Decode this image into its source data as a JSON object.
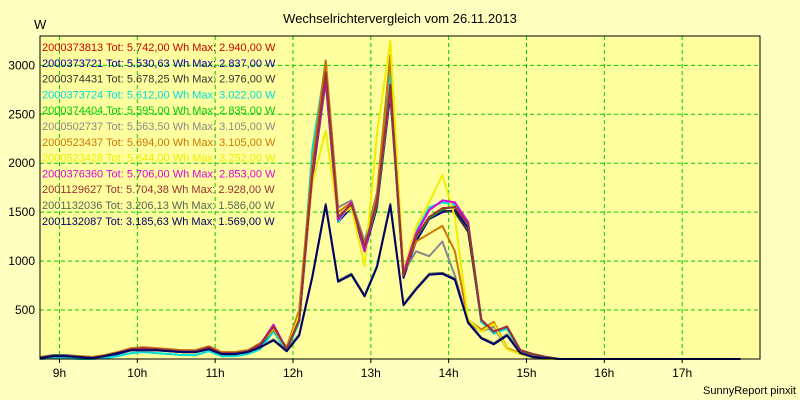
{
  "chart_data": {
    "type": "line",
    "title": "Wechselrichtervergleich vom 26.11.2013",
    "ylabel": "W",
    "credit": "SunnyReport pinxit",
    "ylim": [
      0,
      3300
    ],
    "y_ticks": [
      500,
      1000,
      1500,
      2000,
      2500,
      3000
    ],
    "xlim": [
      8.75,
      18.0
    ],
    "x_ticks": [
      {
        "value": 9,
        "label": "9h"
      },
      {
        "value": 10,
        "label": "10h"
      },
      {
        "value": 11,
        "label": "11h"
      },
      {
        "value": 12,
        "label": "12h"
      },
      {
        "value": 13,
        "label": "13h"
      },
      {
        "value": 14,
        "label": "14h"
      },
      {
        "value": 15,
        "label": "15h"
      },
      {
        "value": 16,
        "label": "16h"
      },
      {
        "value": 17,
        "label": "17h"
      }
    ],
    "grid": true,
    "legend_position": "top-left",
    "x": [
      8.75,
      8.92,
      9.08,
      9.25,
      9.42,
      9.58,
      9.75,
      9.92,
      10.08,
      10.25,
      10.42,
      10.58,
      10.75,
      10.92,
      11.08,
      11.25,
      11.42,
      11.58,
      11.75,
      11.92,
      12.08,
      12.25,
      12.42,
      12.58,
      12.75,
      12.92,
      13.08,
      13.25,
      13.42,
      13.58,
      13.75,
      13.92,
      14.08,
      14.25,
      14.42,
      14.58,
      14.75,
      14.92,
      15.08,
      15.25,
      15.42,
      15.58,
      15.75,
      15.92,
      16.08,
      16.25,
      16.42,
      16.58,
      16.75,
      16.92,
      17.08,
      17.25,
      17.42,
      17.58,
      17.75
    ],
    "series": [
      {
        "name": "2000373813 Tot: 5.742,00 Wh Max: 2.940,00 W",
        "color": "#cc0000",
        "values": [
          10,
          30,
          30,
          20,
          10,
          30,
          60,
          100,
          110,
          100,
          90,
          80,
          80,
          120,
          60,
          60,
          80,
          150,
          330,
          100,
          400,
          1900,
          2940,
          1450,
          1580,
          1150,
          1600,
          2800,
          850,
          1250,
          1450,
          1540,
          1550,
          1380,
          400,
          280,
          330,
          90,
          50,
          20,
          0,
          0,
          0,
          0,
          0,
          0,
          0,
          0,
          0,
          0,
          0,
          0,
          0,
          0,
          0
        ]
      },
      {
        "name": "2000373721 Tot: 5.530,63 Wh Max: 2.837,00 W",
        "color": "#000099",
        "values": [
          0,
          20,
          20,
          10,
          10,
          20,
          50,
          90,
          100,
          90,
          80,
          70,
          70,
          110,
          50,
          50,
          70,
          140,
          300,
          90,
          380,
          1850,
          2837,
          1400,
          1550,
          1100,
          1550,
          2700,
          830,
          1200,
          1430,
          1500,
          1520,
          1340,
          380,
          270,
          320,
          80,
          40,
          10,
          0,
          0,
          0,
          0,
          0,
          0,
          0,
          0,
          0,
          0,
          0,
          0,
          0,
          0,
          0
        ]
      },
      {
        "name": "2000374431 Tot: 5.678,25 Wh Max: 2.976,00 W",
        "color": "#333333",
        "values": [
          10,
          30,
          30,
          20,
          10,
          30,
          60,
          100,
          110,
          100,
          90,
          80,
          80,
          120,
          60,
          60,
          80,
          150,
          320,
          100,
          400,
          1900,
          2976,
          1440,
          1580,
          1150,
          1600,
          2780,
          860,
          1250,
          1450,
          1520,
          1500,
          1300,
          400,
          280,
          330,
          90,
          50,
          20,
          0,
          0,
          0,
          0,
          0,
          0,
          0,
          0,
          0,
          0,
          0,
          0,
          0,
          0,
          0
        ]
      },
      {
        "name": "2000373724 Tot: 5.612,00 Wh Max: 3.022,00 W",
        "color": "#00dddd",
        "values": [
          0,
          10,
          10,
          0,
          0,
          10,
          30,
          60,
          70,
          60,
          50,
          40,
          40,
          80,
          30,
          30,
          50,
          100,
          280,
          80,
          380,
          2150,
          3022,
          1400,
          1600,
          1100,
          1650,
          2950,
          900,
          1300,
          1550,
          1600,
          1580,
          1400,
          380,
          260,
          310,
          70,
          30,
          10,
          0,
          0,
          0,
          0,
          0,
          0,
          0,
          0,
          0,
          0,
          0,
          0,
          0,
          0,
          0
        ]
      },
      {
        "name": "2000374404 Tot: 5.595,00 Wh Max: 2.835,00 W",
        "color": "#00cc00",
        "values": [
          10,
          30,
          30,
          20,
          10,
          30,
          60,
          100,
          110,
          100,
          90,
          80,
          80,
          120,
          60,
          60,
          80,
          150,
          330,
          100,
          400,
          1900,
          2835,
          1430,
          1580,
          1120,
          1580,
          2750,
          860,
          1240,
          1440,
          1530,
          1560,
          1380,
          400,
          280,
          330,
          90,
          50,
          20,
          0,
          0,
          0,
          0,
          0,
          0,
          0,
          0,
          0,
          0,
          0,
          0,
          0,
          0,
          0
        ]
      },
      {
        "name": "2000502737 Tot: 5.563,50 Wh Max: 3.105,00 W",
        "color": "#888888",
        "values": [
          20,
          40,
          40,
          30,
          20,
          40,
          70,
          110,
          120,
          110,
          100,
          90,
          90,
          130,
          70,
          70,
          90,
          160,
          300,
          120,
          500,
          2000,
          3050,
          1550,
          1620,
          1200,
          1700,
          3105,
          880,
          1100,
          1050,
          1200,
          850,
          380,
          280,
          330,
          100,
          50,
          20,
          0,
          0,
          0,
          0,
          0,
          0,
          0,
          0,
          0,
          0,
          0,
          0,
          0,
          0,
          0,
          0
        ]
      },
      {
        "name": "2000523437 Tot: 5.694,00 Wh Max: 3.105,00 W",
        "color": "#cc7700",
        "values": [
          20,
          40,
          40,
          30,
          20,
          40,
          70,
          110,
          120,
          110,
          100,
          90,
          90,
          130,
          70,
          70,
          90,
          160,
          300,
          120,
          500,
          2000,
          3050,
          1500,
          1600,
          1150,
          1680,
          3105,
          880,
          1200,
          1280,
          1360,
          1100,
          400,
          300,
          380,
          110,
          60,
          20,
          0,
          0,
          0,
          0,
          0,
          0,
          0,
          0,
          0,
          0,
          0,
          0,
          0,
          0,
          0,
          0
        ]
      },
      {
        "name": "2000523428 Tot: 5.844,00 Wh Max: 3.252,00 W",
        "color": "#eeee00",
        "values": [
          10,
          30,
          30,
          20,
          10,
          30,
          60,
          100,
          110,
          100,
          90,
          80,
          80,
          120,
          60,
          60,
          80,
          150,
          320,
          100,
          450,
          1800,
          2330,
          1450,
          1550,
          950,
          2300,
          3252,
          900,
          1350,
          1600,
          1880,
          1450,
          400,
          280,
          360,
          100,
          50,
          20,
          0,
          0,
          0,
          0,
          0,
          0,
          0,
          0,
          0,
          0,
          0,
          0,
          0,
          0,
          0,
          0
        ]
      },
      {
        "name": "2000376360 Tot: 5.706,00 Wh Max: 2.853,00 W",
        "color": "#dd00dd",
        "values": [
          10,
          30,
          30,
          20,
          10,
          30,
          60,
          100,
          110,
          100,
          90,
          80,
          80,
          120,
          60,
          60,
          80,
          150,
          350,
          100,
          400,
          1880,
          2853,
          1420,
          1600,
          1100,
          1620,
          2750,
          880,
          1280,
          1520,
          1620,
          1600,
          1400,
          400,
          280,
          330,
          90,
          50,
          20,
          0,
          0,
          0,
          0,
          0,
          0,
          0,
          0,
          0,
          0,
          0,
          0,
          0,
          0,
          0
        ]
      },
      {
        "name": "2001129627 Tot: 5.704,38 Wh Max: 2.928,00 W",
        "color": "#993333",
        "values": [
          10,
          30,
          30,
          20,
          10,
          30,
          60,
          100,
          110,
          100,
          90,
          80,
          80,
          120,
          60,
          60,
          80,
          150,
          330,
          100,
          400,
          1900,
          2928,
          1450,
          1580,
          1150,
          1600,
          2800,
          850,
          1250,
          1450,
          1540,
          1550,
          1380,
          400,
          280,
          330,
          90,
          50,
          20,
          0,
          0,
          0,
          0,
          0,
          0,
          0,
          0,
          0,
          0,
          0,
          0,
          0,
          0,
          0
        ]
      },
      {
        "name": "2001132036 Tot: 3.206,13 Wh Max: 1.586,00 W",
        "color": "#556655",
        "values": [
          10,
          40,
          40,
          20,
          10,
          30,
          60,
          90,
          90,
          90,
          80,
          70,
          70,
          100,
          50,
          50,
          70,
          120,
          200,
          90,
          250,
          850,
          1586,
          800,
          870,
          650,
          950,
          1586,
          560,
          720,
          870,
          880,
          820,
          380,
          220,
          160,
          250,
          70,
          30,
          10,
          0,
          0,
          0,
          0,
          0,
          0,
          0,
          0,
          0,
          0,
          0,
          0,
          0,
          0,
          0
        ]
      },
      {
        "name": "2001132087 Tot: 3.185,63 Wh Max: 1.569,00 W",
        "color": "#000066",
        "values": [
          10,
          30,
          30,
          20,
          10,
          30,
          60,
          90,
          90,
          90,
          80,
          70,
          70,
          100,
          50,
          50,
          70,
          120,
          190,
          80,
          240,
          840,
          1569,
          790,
          860,
          640,
          940,
          1569,
          550,
          710,
          860,
          870,
          810,
          370,
          210,
          150,
          240,
          60,
          20,
          10,
          0,
          0,
          0,
          0,
          0,
          0,
          0,
          0,
          0,
          0,
          0,
          0,
          0,
          0,
          0
        ]
      }
    ]
  }
}
